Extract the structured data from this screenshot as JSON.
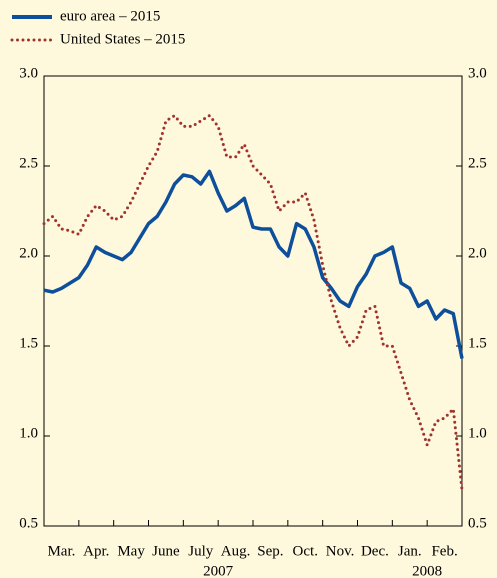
{
  "chart_data": {
    "type": "line",
    "x": [
      0,
      0.25,
      0.5,
      0.75,
      1,
      1.25,
      1.5,
      1.75,
      2,
      2.25,
      2.5,
      2.75,
      3,
      3.25,
      3.5,
      3.75,
      4,
      4.25,
      4.5,
      4.75,
      5,
      5.25,
      5.5,
      5.75,
      6,
      6.25,
      6.5,
      6.75,
      7,
      7.25,
      7.5,
      7.75,
      8,
      8.25,
      8.5,
      8.75,
      9,
      9.25,
      9.5,
      9.75,
      10,
      10.25,
      10.5,
      10.75,
      11,
      11.25,
      11.5,
      11.75,
      12
    ],
    "xlim": [
      0,
      12
    ],
    "xticks": [
      {
        "value": 0.5,
        "label": "Mar."
      },
      {
        "value": 1.5,
        "label": "Apr."
      },
      {
        "value": 2.5,
        "label": "May"
      },
      {
        "value": 3.5,
        "label": "June"
      },
      {
        "value": 4.5,
        "label": "July"
      },
      {
        "value": 5.5,
        "label": "Aug."
      },
      {
        "value": 6.5,
        "label": "Sep."
      },
      {
        "value": 7.5,
        "label": "Oct."
      },
      {
        "value": 8.5,
        "label": "Nov."
      },
      {
        "value": 9.5,
        "label": "Dec."
      },
      {
        "value": 10.5,
        "label": "Jan."
      },
      {
        "value": 11.5,
        "label": "Feb."
      }
    ],
    "annotations": [
      {
        "text": "2007",
        "x": 5
      },
      {
        "text": "2008",
        "x": 11
      }
    ],
    "ylim": [
      0.5,
      3.0
    ],
    "yticks": [
      {
        "value": 0.5,
        "label": "0.5"
      },
      {
        "value": 1.0,
        "label": "1.0"
      },
      {
        "value": 1.5,
        "label": "1.5"
      },
      {
        "value": 2.0,
        "label": "2.0"
      },
      {
        "value": 2.5,
        "label": "2.5"
      },
      {
        "value": 3.0,
        "label": "3.0"
      }
    ],
    "y2lim": [
      0.5,
      3.0
    ],
    "y2ticks": [
      {
        "value": 0.5,
        "label": "0.5"
      },
      {
        "value": 1.0,
        "label": "1.0"
      },
      {
        "value": 1.5,
        "label": "1.5"
      },
      {
        "value": 2.0,
        "label": "2.0"
      },
      {
        "value": 2.5,
        "label": "2.5"
      },
      {
        "value": 3.0,
        "label": "3.0"
      }
    ],
    "series": [
      {
        "name": "euro area – 2015",
        "color": "#0e4f9c",
        "style": "solid",
        "values": [
          1.81,
          1.8,
          1.82,
          1.85,
          1.88,
          1.95,
          2.05,
          2.02,
          2.0,
          1.98,
          2.02,
          2.1,
          2.18,
          2.22,
          2.3,
          2.4,
          2.45,
          2.44,
          2.4,
          2.47,
          2.35,
          2.25,
          2.28,
          2.32,
          2.16,
          2.15,
          2.15,
          2.05,
          2.0,
          2.18,
          2.15,
          2.05,
          1.88,
          1.82,
          1.75,
          1.72,
          1.83,
          1.9,
          2.0,
          2.02,
          2.05,
          1.85,
          1.82,
          1.72,
          1.75,
          1.65,
          1.7,
          1.68,
          1.43
        ]
      },
      {
        "name": "United States – 2015",
        "color": "#a0332e",
        "style": "dotted",
        "values": [
          2.18,
          2.22,
          2.15,
          2.14,
          2.12,
          2.22,
          2.28,
          2.25,
          2.2,
          2.22,
          2.3,
          2.4,
          2.5,
          2.58,
          2.75,
          2.78,
          2.72,
          2.72,
          2.75,
          2.78,
          2.72,
          2.55,
          2.55,
          2.62,
          2.5,
          2.45,
          2.4,
          2.25,
          2.3,
          2.3,
          2.35,
          2.2,
          1.95,
          1.75,
          1.6,
          1.5,
          1.55,
          1.7,
          1.72,
          1.5,
          1.5,
          1.35,
          1.2,
          1.1,
          0.95,
          1.08,
          1.1,
          1.15,
          0.7
        ]
      }
    ]
  }
}
